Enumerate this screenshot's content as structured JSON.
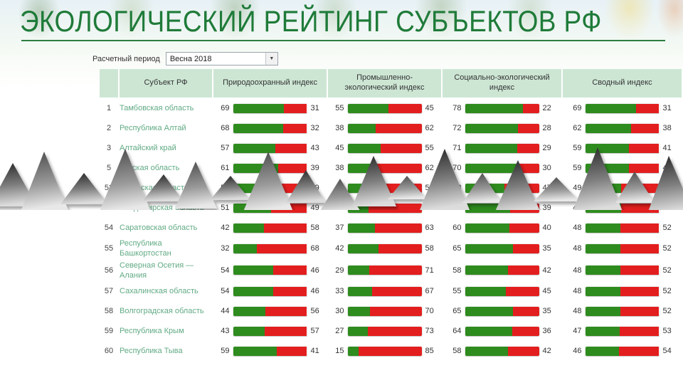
{
  "page": {
    "title": "ЭКОЛОГИЧЕСКИЙ РЕЙТИНГ СУБЪЕКТОВ РФ"
  },
  "filter": {
    "label": "Расчетный период",
    "selected": "Весна 2018"
  },
  "colors": {
    "bar_green": "#2e8b1e",
    "bar_red": "#e31e1e",
    "header_bg": "#cde6d4",
    "link_green": "#62ab85",
    "title_green": "#1f7b39"
  },
  "table": {
    "headers": [
      "",
      "Субъект РФ",
      "Природоохранный индекс",
      "Промышленно-экологический индекс",
      "Социально-экологический индекс",
      "Сводный индекс"
    ],
    "rows": [
      {
        "rank": "1",
        "subject": "Тамбовская область",
        "indices": [
          [
            69,
            31
          ],
          [
            55,
            45
          ],
          [
            78,
            22
          ],
          [
            69,
            31
          ]
        ]
      },
      {
        "rank": "2",
        "subject": "Республика Алтай",
        "indices": [
          [
            68,
            32
          ],
          [
            38,
            62
          ],
          [
            72,
            28
          ],
          [
            62,
            38
          ]
        ]
      },
      {
        "rank": "3",
        "subject": "Алтайский край",
        "indices": [
          [
            57,
            43
          ],
          [
            45,
            55
          ],
          [
            71,
            29
          ],
          [
            59,
            41
          ]
        ]
      },
      {
        "rank": "5",
        "subject": "Курская область",
        "indices": [
          [
            61,
            39
          ],
          [
            38,
            62
          ],
          [
            70,
            30
          ],
          [
            59,
            41
          ]
        ]
      },
      {
        "rank": "52",
        "subject": "Псковская область",
        "indices": [
          [
            51,
            49
          ],
          [
            42,
            58
          ],
          [
            53,
            47
          ],
          [
            49,
            51
          ]
        ]
      },
      {
        "rank": "53",
        "subject": "Владимирская область",
        "indices": [
          [
            51,
            49
          ],
          [
            28,
            72
          ],
          [
            61,
            39
          ],
          [
            49,
            51
          ]
        ]
      },
      {
        "rank": "54",
        "subject": "Саратовская область",
        "indices": [
          [
            42,
            58
          ],
          [
            37,
            63
          ],
          [
            60,
            40
          ],
          [
            48,
            52
          ]
        ]
      },
      {
        "rank": "55",
        "subject": "Республика Башкортостан",
        "indices": [
          [
            32,
            68
          ],
          [
            42,
            58
          ],
          [
            65,
            35
          ],
          [
            48,
            52
          ]
        ]
      },
      {
        "rank": "56",
        "subject": "Северная Осетия — Алания",
        "indices": [
          [
            54,
            46
          ],
          [
            29,
            71
          ],
          [
            58,
            42
          ],
          [
            48,
            52
          ]
        ]
      },
      {
        "rank": "57",
        "subject": "Сахалинская область",
        "indices": [
          [
            54,
            46
          ],
          [
            33,
            67
          ],
          [
            55,
            45
          ],
          [
            48,
            52
          ]
        ]
      },
      {
        "rank": "58",
        "subject": "Волгоградская область",
        "indices": [
          [
            44,
            56
          ],
          [
            30,
            70
          ],
          [
            65,
            35
          ],
          [
            48,
            52
          ]
        ]
      },
      {
        "rank": "59",
        "subject": "Республика Крым",
        "indices": [
          [
            43,
            57
          ],
          [
            27,
            73
          ],
          [
            64,
            36
          ],
          [
            47,
            53
          ]
        ]
      },
      {
        "rank": "60",
        "subject": "Республика Тыва",
        "indices": [
          [
            59,
            41
          ],
          [
            15,
            85
          ],
          [
            58,
            42
          ],
          [
            46,
            54
          ]
        ]
      }
    ]
  }
}
